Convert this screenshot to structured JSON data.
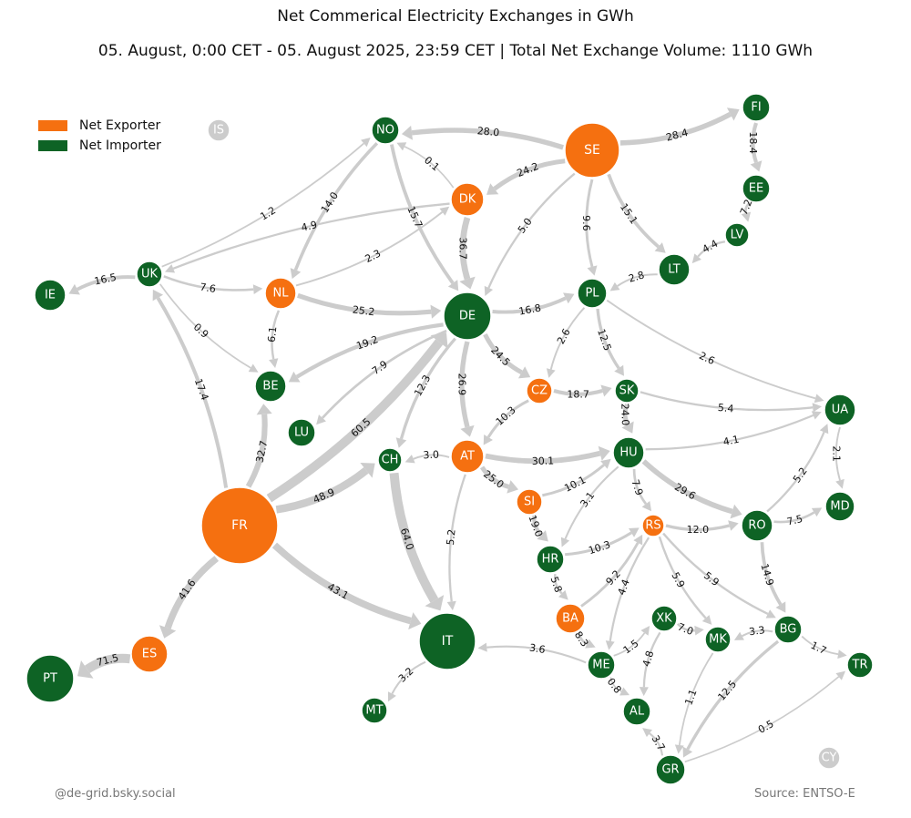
{
  "title": "Net Commerical Electricity Exchanges in GWh",
  "subtitle": "05. August, 0:00 CET - 05. August 2025, 23:59 CET | Total Net Exchange Volume: 1110 GWh",
  "credit": "@de-grid.bsky.social",
  "source": "Source: ENTSO-E",
  "legend": [
    {
      "label": "Net Exporter",
      "color": "#f57010"
    },
    {
      "label": "Net Importer",
      "color": "#0e6325"
    }
  ],
  "colors": {
    "exporter": "#f57010",
    "importer": "#0e6325",
    "neutral": "#cccccc",
    "flow": "#cccccc"
  },
  "nodes": [
    {
      "id": "IS",
      "type": "neutral"
    },
    {
      "id": "NO",
      "type": "importer"
    },
    {
      "id": "SE",
      "type": "exporter"
    },
    {
      "id": "FI",
      "type": "importer"
    },
    {
      "id": "EE",
      "type": "importer"
    },
    {
      "id": "LV",
      "type": "importer"
    },
    {
      "id": "LT",
      "type": "importer"
    },
    {
      "id": "DK",
      "type": "exporter"
    },
    {
      "id": "UK",
      "type": "importer"
    },
    {
      "id": "IE",
      "type": "importer"
    },
    {
      "id": "NL",
      "type": "exporter"
    },
    {
      "id": "DE",
      "type": "importer"
    },
    {
      "id": "PL",
      "type": "importer"
    },
    {
      "id": "BE",
      "type": "importer"
    },
    {
      "id": "LU",
      "type": "importer"
    },
    {
      "id": "CZ",
      "type": "exporter"
    },
    {
      "id": "SK",
      "type": "importer"
    },
    {
      "id": "UA",
      "type": "importer"
    },
    {
      "id": "CH",
      "type": "importer"
    },
    {
      "id": "AT",
      "type": "exporter"
    },
    {
      "id": "HU",
      "type": "importer"
    },
    {
      "id": "FR",
      "type": "exporter"
    },
    {
      "id": "SI",
      "type": "exporter"
    },
    {
      "id": "MD",
      "type": "importer"
    },
    {
      "id": "RS",
      "type": "exporter"
    },
    {
      "id": "RO",
      "type": "importer"
    },
    {
      "id": "HR",
      "type": "importer"
    },
    {
      "id": "BA",
      "type": "exporter"
    },
    {
      "id": "IT",
      "type": "importer"
    },
    {
      "id": "XK",
      "type": "importer"
    },
    {
      "id": "MK",
      "type": "importer"
    },
    {
      "id": "BG",
      "type": "importer"
    },
    {
      "id": "TR",
      "type": "importer"
    },
    {
      "id": "ES",
      "type": "exporter"
    },
    {
      "id": "PT",
      "type": "importer"
    },
    {
      "id": "ME",
      "type": "importer"
    },
    {
      "id": "MT",
      "type": "importer"
    },
    {
      "id": "AL",
      "type": "importer"
    },
    {
      "id": "GR",
      "type": "importer"
    },
    {
      "id": "CY",
      "type": "neutral"
    }
  ],
  "flows": [
    {
      "from": "SE",
      "to": "NO",
      "value": 28.0
    },
    {
      "from": "SE",
      "to": "FI",
      "value": 28.4
    },
    {
      "from": "SE",
      "to": "DK",
      "value": 24.2
    },
    {
      "from": "SE",
      "to": "LT",
      "value": 15.1
    },
    {
      "from": "SE",
      "to": "PL",
      "value": 9.6
    },
    {
      "from": "SE",
      "to": "DE",
      "value": 5.0
    },
    {
      "from": "FI",
      "to": "EE",
      "value": 18.4
    },
    {
      "from": "EE",
      "to": "LV",
      "value": 7.2
    },
    {
      "from": "LV",
      "to": "LT",
      "value": 4.4
    },
    {
      "from": "LT",
      "to": "PL",
      "value": 2.8
    },
    {
      "from": "DK",
      "to": "NO",
      "value": 0.1
    },
    {
      "from": "DK",
      "to": "DE",
      "value": 36.7
    },
    {
      "from": "DK",
      "to": "UK",
      "value": 4.9
    },
    {
      "from": "NO",
      "to": "DE",
      "value": 15.7
    },
    {
      "from": "NO",
      "to": "NL",
      "value": 14.0
    },
    {
      "from": "UK",
      "to": "NO",
      "value": 1.2
    },
    {
      "from": "UK",
      "to": "IE",
      "value": 16.5
    },
    {
      "from": "UK",
      "to": "NL",
      "value": 7.6
    },
    {
      "from": "UK",
      "to": "BE",
      "value": 0.9
    },
    {
      "from": "NL",
      "to": "DK",
      "value": 2.3
    },
    {
      "from": "NL",
      "to": "DE",
      "value": 25.2
    },
    {
      "from": "NL",
      "to": "BE",
      "value": 6.1
    },
    {
      "from": "DE",
      "to": "PL",
      "value": 16.8
    },
    {
      "from": "DE",
      "to": "BE",
      "value": 19.2
    },
    {
      "from": "DE",
      "to": "LU",
      "value": 7.9
    },
    {
      "from": "DE",
      "to": "CZ",
      "value": 24.5
    },
    {
      "from": "DE",
      "to": "AT",
      "value": 26.9
    },
    {
      "from": "DE",
      "to": "CH",
      "value": 12.3
    },
    {
      "from": "PL",
      "to": "CZ",
      "value": 2.6
    },
    {
      "from": "PL",
      "to": "SK",
      "value": 12.5
    },
    {
      "from": "PL",
      "to": "UA",
      "value": 2.6
    },
    {
      "from": "CZ",
      "to": "SK",
      "value": 18.7
    },
    {
      "from": "CZ",
      "to": "AT",
      "value": 10.3
    },
    {
      "from": "SK",
      "to": "UA",
      "value": 5.4
    },
    {
      "from": "SK",
      "to": "HU",
      "value": 24.0
    },
    {
      "from": "HU",
      "to": "UA",
      "value": 4.1
    },
    {
      "from": "AT",
      "to": "HU",
      "value": 30.1
    },
    {
      "from": "AT",
      "to": "CH",
      "value": 3.0
    },
    {
      "from": "AT",
      "to": "SI",
      "value": 25.0
    },
    {
      "from": "AT",
      "to": "IT",
      "value": 5.2
    },
    {
      "from": "CH",
      "to": "IT",
      "value": 64.0
    },
    {
      "from": "FR",
      "to": "UK",
      "value": 17.4
    },
    {
      "from": "FR",
      "to": "BE",
      "value": 32.7
    },
    {
      "from": "FR",
      "to": "DE",
      "value": 60.5
    },
    {
      "from": "FR",
      "to": "CH",
      "value": 48.9
    },
    {
      "from": "FR",
      "to": "IT",
      "value": 43.1
    },
    {
      "from": "FR",
      "to": "ES",
      "value": 41.6
    },
    {
      "from": "ES",
      "to": "PT",
      "value": 71.5
    },
    {
      "from": "SI",
      "to": "HU",
      "value": 10.1
    },
    {
      "from": "SI",
      "to": "HR",
      "value": 19.0
    },
    {
      "from": "HU",
      "to": "HR",
      "value": 3.1
    },
    {
      "from": "HU",
      "to": "RS",
      "value": 7.9
    },
    {
      "from": "HU",
      "to": "RO",
      "value": 29.6
    },
    {
      "from": "RO",
      "to": "UA",
      "value": 5.2
    },
    {
      "from": "UA",
      "to": "MD",
      "value": 2.1
    },
    {
      "from": "RO",
      "to": "MD",
      "value": 7.5
    },
    {
      "from": "RO",
      "to": "BG",
      "value": 14.9
    },
    {
      "from": "RS",
      "to": "RO",
      "value": 12.0
    },
    {
      "from": "HR",
      "to": "RS",
      "value": 10.3
    },
    {
      "from": "HR",
      "to": "BA",
      "value": 5.8
    },
    {
      "from": "BA",
      "to": "RS",
      "value": 9.2
    },
    {
      "from": "BA",
      "to": "ME",
      "value": 8.3
    },
    {
      "from": "RS",
      "to": "ME",
      "value": 4.4
    },
    {
      "from": "RS",
      "to": "MK",
      "value": 5.9
    },
    {
      "from": "RS",
      "to": "BG",
      "value": 5.9
    },
    {
      "from": "XK",
      "to": "MK",
      "value": 7.0
    },
    {
      "from": "ME",
      "to": "XK",
      "value": 1.5
    },
    {
      "from": "XK",
      "to": "AL",
      "value": 4.8
    },
    {
      "from": "ME",
      "to": "AL",
      "value": 0.8
    },
    {
      "from": "ME",
      "to": "IT",
      "value": 3.6
    },
    {
      "from": "BG",
      "to": "MK",
      "value": 3.3
    },
    {
      "from": "BG",
      "to": "TR",
      "value": 1.7
    },
    {
      "from": "BG",
      "to": "GR",
      "value": 12.5
    },
    {
      "from": "MK",
      "to": "GR",
      "value": 1.1
    },
    {
      "from": "GR",
      "to": "AL",
      "value": 3.7
    },
    {
      "from": "GR",
      "to": "TR",
      "value": 0.5
    },
    {
      "from": "IT",
      "to": "MT",
      "value": 3.2
    }
  ]
}
